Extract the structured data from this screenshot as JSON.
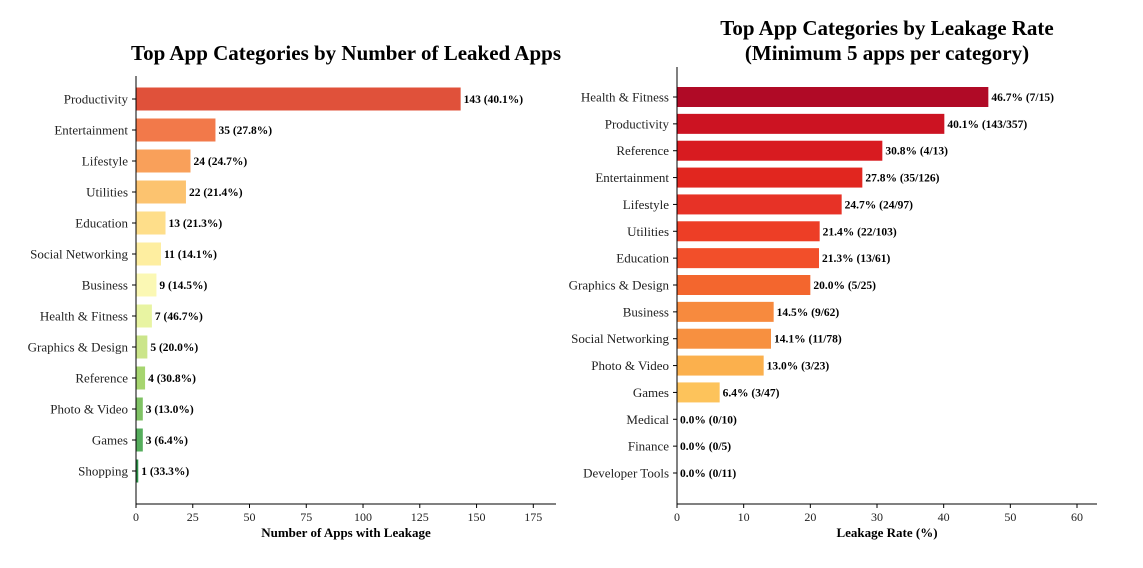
{
  "chart_data": [
    {
      "type": "bar",
      "orientation": "horizontal",
      "title": "Top App Categories by Number of Leaked Apps",
      "xlabel": "Number of Apps with Leakage",
      "ylabel": "",
      "xlim": [
        0,
        185
      ],
      "xticks": [
        "0",
        "25",
        "50",
        "75",
        "100",
        "125",
        "150",
        "175"
      ],
      "categories": [
        "Productivity",
        "Entertainment",
        "Lifestyle",
        "Utilities",
        "Education",
        "Social Networking",
        "Business",
        "Health & Fitness",
        "Graphics & Design",
        "Reference",
        "Photo & Video",
        "Games",
        "Shopping"
      ],
      "values": [
        143,
        35,
        24,
        22,
        13,
        11,
        9,
        7,
        5,
        4,
        3,
        3,
        1
      ],
      "labels": [
        "143 (40.1%)",
        "35 (27.8%)",
        "24 (24.7%)",
        "22 (21.4%)",
        "13 (21.3%)",
        "11 (14.1%)",
        "9 (14.5%)",
        "7 (46.7%)",
        "5 (20.0%)",
        "4 (30.8%)",
        "3 (13.0%)",
        "3 (6.4%)",
        "1 (33.3%)"
      ],
      "colors": [
        "#e0513a",
        "#f2794a",
        "#f9a05a",
        "#fcc36f",
        "#fede8a",
        "#feeea0",
        "#fbf8b4",
        "#e8f4a2",
        "#cbe58a",
        "#a6d56f",
        "#7fc264",
        "#55ad5c",
        "#2d9148"
      ],
      "grid": false
    },
    {
      "type": "bar",
      "orientation": "horizontal",
      "title_lines": [
        "Top App Categories by Leakage Rate",
        "(Minimum 5 apps per category)"
      ],
      "xlabel": "Leakage Rate (%)",
      "ylabel": "",
      "xlim": [
        0,
        63
      ],
      "xticks": [
        "0",
        "10",
        "20",
        "30",
        "40",
        "50",
        "60"
      ],
      "categories": [
        "Health & Fitness",
        "Productivity",
        "Reference",
        "Entertainment",
        "Lifestyle",
        "Utilities",
        "Education",
        "Graphics & Design",
        "Business",
        "Social Networking",
        "Photo & Video",
        "Games",
        "Medical",
        "Finance",
        "Developer Tools"
      ],
      "values": [
        46.7,
        40.1,
        30.8,
        27.8,
        24.7,
        21.4,
        21.3,
        20.0,
        14.5,
        14.1,
        13.0,
        6.4,
        0.0,
        0.0,
        0.0
      ],
      "labels": [
        "46.7% (7/15)",
        "40.1% (143/357)",
        "30.8% (4/13)",
        "27.8% (35/126)",
        "24.7% (24/97)",
        "21.4% (22/103)",
        "21.3% (13/61)",
        "20.0% (5/25)",
        "14.5% (9/62)",
        "14.1% (11/78)",
        "13.0% (3/23)",
        "6.4% (3/47)",
        "0.0% (0/10)",
        "0.0% (0/5)",
        "0.0% (0/11)"
      ],
      "colors": [
        "#b00a26",
        "#cc1322",
        "#d81b20",
        "#e1261f",
        "#e73226",
        "#ed3e26",
        "#f24f2a",
        "#f3662e",
        "#f78a3e",
        "#f79040",
        "#fbb04d",
        "#fdc35b",
        "#fed672",
        "#ffe485",
        "#fff0a0"
      ],
      "grid": false
    }
  ]
}
